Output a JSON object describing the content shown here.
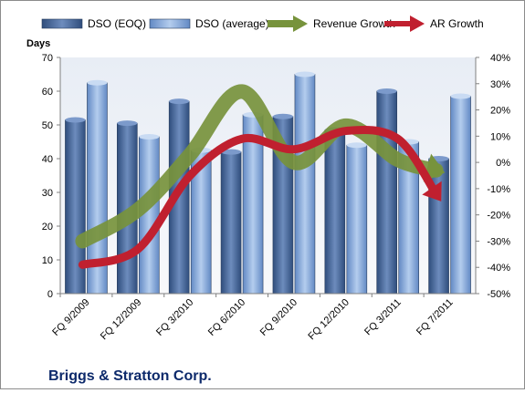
{
  "chart_data": {
    "type": "bar",
    "footer_title": "Briggs & Stratton Corp.",
    "y_left_title": "Days",
    "categories": [
      "FQ 9/2009",
      "FQ 12/2009",
      "FQ 3/2010",
      "FQ 6/2010",
      "FQ 9/2010",
      "FQ 12/2010",
      "FQ 3/2011",
      "FQ 7/2011"
    ],
    "ylim_left": [
      0,
      70
    ],
    "yticks_left": [
      0,
      10,
      20,
      30,
      40,
      50,
      60,
      70
    ],
    "ylim_right": [
      -50,
      40
    ],
    "yticks_right": [
      "-50%",
      "-40%",
      "-30%",
      "-20%",
      "-10%",
      "0%",
      "10%",
      "20%",
      "30%",
      "40%"
    ],
    "series": [
      {
        "name": "DSO (EOQ)",
        "type": "bar",
        "axis": "left",
        "color": "#4a6a9a",
        "values": [
          51.5,
          50.5,
          57,
          42,
          52.5,
          48.5,
          60,
          40
        ]
      },
      {
        "name": "DSO (average)",
        "type": "bar",
        "axis": "left",
        "color": "#8db0e0",
        "values": [
          62.5,
          46.5,
          42.5,
          53,
          65,
          44,
          45,
          58.5
        ]
      },
      {
        "name": "Revenue Growth",
        "type": "line",
        "axis": "right",
        "color": "#77933c",
        "values": [
          -30,
          -18,
          3,
          27,
          0,
          14,
          1,
          -3
        ]
      },
      {
        "name": "AR Growth",
        "type": "line",
        "axis": "right",
        "color": "#c0202f",
        "values": [
          -39,
          -33,
          -5,
          9,
          5,
          12,
          9,
          -12
        ]
      }
    ],
    "grid": false,
    "legend_position": "top"
  }
}
